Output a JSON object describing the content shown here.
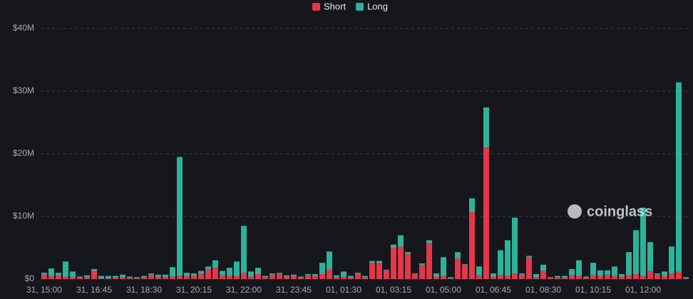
{
  "chart_data": {
    "type": "stacked-bar",
    "watermark": "coinglass",
    "categories": [
      "31, 15:00",
      null,
      null,
      null,
      null,
      null,
      null,
      "31, 16:45",
      null,
      null,
      null,
      null,
      null,
      null,
      "31, 18:30",
      null,
      null,
      null,
      null,
      null,
      null,
      "31, 20:15",
      null,
      null,
      null,
      null,
      null,
      null,
      "31, 22:00",
      null,
      null,
      null,
      null,
      null,
      null,
      "31, 23:45",
      null,
      null,
      null,
      null,
      null,
      null,
      "01, 01:30",
      null,
      null,
      null,
      null,
      null,
      null,
      "01, 03:15",
      null,
      null,
      null,
      null,
      null,
      null,
      "01, 05:00",
      null,
      null,
      null,
      null,
      null,
      null,
      "01, 06:45",
      null,
      null,
      null,
      null,
      null,
      null,
      "01, 08:30",
      null,
      null,
      null,
      null,
      null,
      null,
      "01, 10:15",
      null,
      null,
      null,
      null,
      null,
      null,
      "01, 12:00",
      null,
      null,
      null,
      null,
      null,
      null
    ],
    "series": [
      {
        "name": "Short",
        "color": "#e5374a",
        "values": [
          0.7,
          0.5,
          0.6,
          0.4,
          0.3,
          0.2,
          0.3,
          1.3,
          0.1,
          0.1,
          0.2,
          0.3,
          0.2,
          0.1,
          0.3,
          0.7,
          0.4,
          0.3,
          0.4,
          0.5,
          0.5,
          0.5,
          0.9,
          1.6,
          1.8,
          0.6,
          0.5,
          0.5,
          1.0,
          0.4,
          0.8,
          0.3,
          0.7,
          0.9,
          0.4,
          0.5,
          0.2,
          0.6,
          0.5,
          0.8,
          1.5,
          0.3,
          0.4,
          0.2,
          0.8,
          0.3,
          2.6,
          2.6,
          1.4,
          5.0,
          5.2,
          4.0,
          0.8,
          2.3,
          5.8,
          0.4,
          0.5,
          0.1,
          3.3,
          2.3,
          10.7,
          0.6,
          21.0,
          0.4,
          0.6,
          0.5,
          0.9,
          0.7,
          3.5,
          0.3,
          1.3,
          0.2,
          0.3,
          0.2,
          0.6,
          0.5,
          0.2,
          0.6,
          0.5,
          0.7,
          0.5,
          0.4,
          0.6,
          0.8,
          0.5,
          1.3,
          0.7,
          0.5,
          0.9,
          1.2,
          0.1
        ]
      },
      {
        "name": "Long",
        "color": "#2bb39b",
        "values": [
          0.3,
          1.2,
          0.4,
          2.4,
          0.9,
          0.2,
          0.3,
          0.3,
          0.4,
          0.4,
          0.3,
          0.4,
          0.2,
          0.2,
          0.2,
          0.2,
          0.3,
          0.4,
          1.5,
          19.0,
          0.5,
          0.4,
          0.4,
          0.4,
          1.2,
          0.7,
          1.3,
          2.3,
          7.5,
          0.8,
          1.0,
          0.2,
          0.2,
          0.1,
          0.2,
          0.2,
          0.2,
          0.2,
          0.3,
          1.8,
          2.9,
          0.3,
          0.8,
          0.3,
          0.2,
          0.2,
          0.3,
          0.3,
          0.1,
          0.5,
          1.8,
          0.3,
          0.1,
          0.2,
          0.4,
          0.5,
          3.0,
          0.2,
          1.0,
          0.1,
          2.2,
          1.4,
          6.4,
          0.5,
          4.0,
          5.7,
          8.9,
          0.2,
          0.2,
          0.5,
          1.0,
          0.1,
          0.2,
          0.3,
          1.0,
          2.5,
          0.2,
          2.0,
          0.9,
          0.7,
          1.5,
          0.4,
          3.7,
          7.0,
          10.9,
          4.6,
          0.2,
          0.7,
          4.3,
          30.2,
          0.2
        ]
      }
    ],
    "ylim": [
      0,
      40
    ],
    "yticks": [
      {
        "value": 0,
        "label": "$0"
      },
      {
        "value": 10,
        "label": "$10M"
      },
      {
        "value": 20,
        "label": "$20M"
      },
      {
        "value": 30,
        "label": "$30M"
      },
      {
        "value": 40,
        "label": "$40M"
      }
    ],
    "grid": true,
    "legend": "top"
  }
}
